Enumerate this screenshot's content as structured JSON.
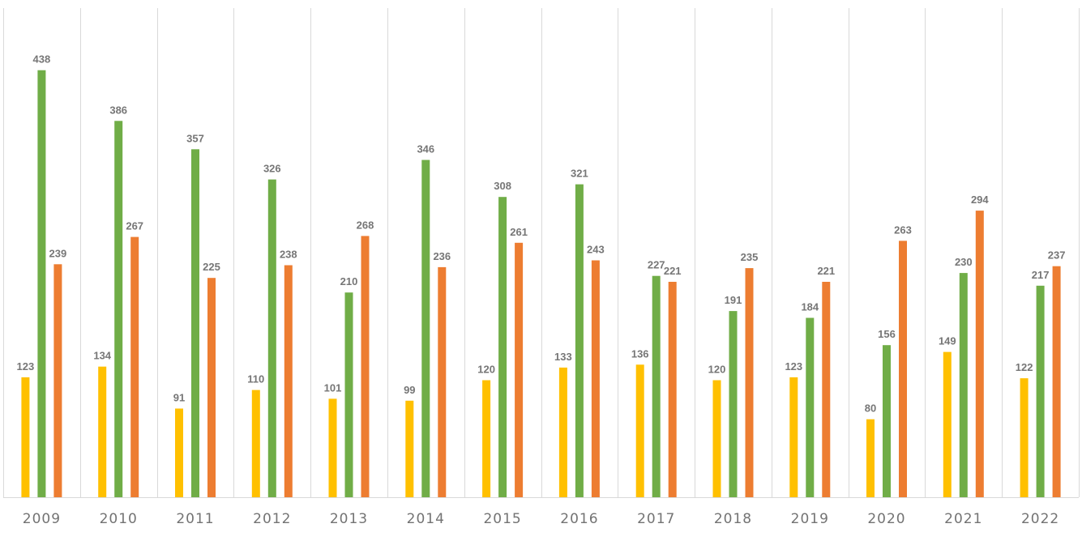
{
  "chart_data": {
    "type": "bar",
    "categories": [
      "2009",
      "2010",
      "2011",
      "2012",
      "2013",
      "2014",
      "2015",
      "2016",
      "2017",
      "2018",
      "2019",
      "2020",
      "2021",
      "2022"
    ],
    "series": [
      {
        "values": [
          123,
          134,
          91,
          110,
          101,
          99,
          120,
          133,
          136,
          120,
          123,
          80,
          149,
          122
        ],
        "color": "#FFC000"
      },
      {
        "values": [
          438,
          386,
          357,
          326,
          210,
          346,
          308,
          321,
          227,
          191,
          184,
          156,
          230,
          217
        ],
        "color": "#70AD47"
      },
      {
        "values": [
          239,
          267,
          225,
          238,
          268,
          236,
          261,
          243,
          221,
          235,
          221,
          263,
          294,
          237
        ],
        "color": "#ED7D31"
      }
    ],
    "ylim": [
      0,
      500
    ],
    "grid": "vertical category separators",
    "legend": "none",
    "data_labels": true
  }
}
